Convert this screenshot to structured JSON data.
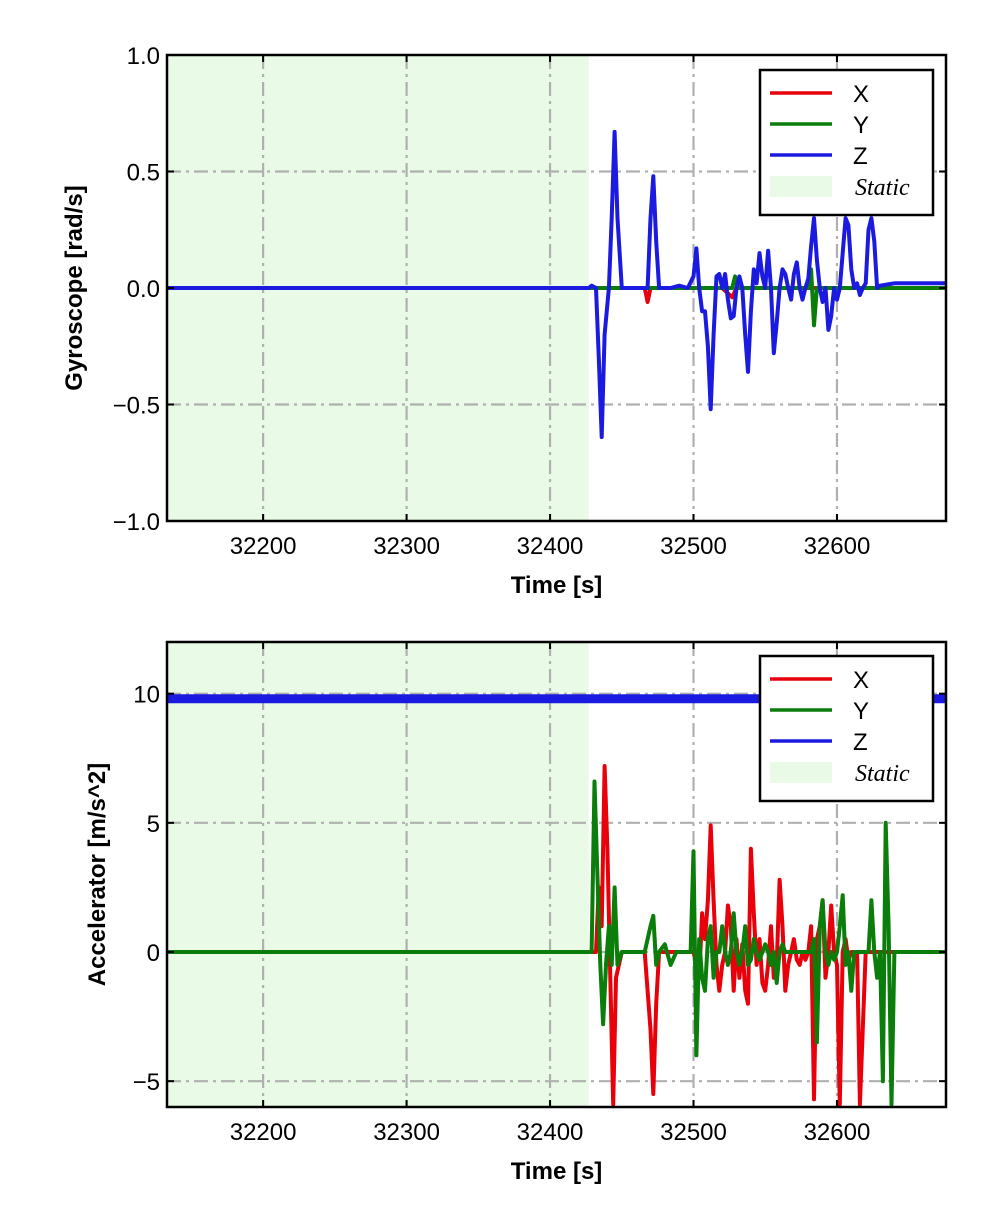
{
  "colors": {
    "X": "#e8000b",
    "Y": "#0a7d0a",
    "Z": "#1a1ae0",
    "static_fill": "#e9fbe6",
    "grid": "#b0b0b0"
  },
  "chart_data": [
    {
      "type": "line",
      "xlabel": "Time [s]",
      "ylabel": "Gyroscope [rad/s]",
      "xlim": [
        32133,
        32676
      ],
      "ylim": [
        -1.0,
        1.0
      ],
      "xticks": [
        32200,
        32300,
        32400,
        32500,
        32600
      ],
      "xtick_labels": [
        "32200",
        "32300",
        "32400",
        "32500",
        "32600"
      ],
      "yticks": [
        -1.0,
        -0.5,
        0.0,
        0.5,
        1.0
      ],
      "ytick_labels": [
        "−1.0",
        "−0.5",
        "0.0",
        "0.5",
        "1.0"
      ],
      "grid": true,
      "legend_position": "top-right",
      "static_region": [
        32133,
        32427
      ],
      "legend": [
        "X",
        "Y",
        "Z",
        "Static"
      ],
      "series": [
        {
          "name": "X",
          "color_key": "X",
          "x": [
            32133,
            32427,
            32466,
            32468,
            32470,
            32500,
            32520,
            32527,
            32530,
            32545,
            32560,
            32580,
            32600,
            32620,
            32676
          ],
          "y": [
            0.0,
            0.0,
            0.0,
            -0.06,
            0.0,
            0.0,
            0.0,
            -0.04,
            0.0,
            0.0,
            0.0,
            0.0,
            0.0,
            0.0,
            0.0
          ]
        },
        {
          "name": "Y",
          "color_key": "Y",
          "x": [
            32133,
            32427,
            32500,
            32527,
            32529,
            32531,
            32580,
            32582,
            32584,
            32586,
            32620,
            32676
          ],
          "y": [
            0.0,
            0.0,
            0.0,
            0.0,
            0.05,
            0.0,
            0.0,
            0.08,
            -0.16,
            0.0,
            0.0,
            0.0
          ]
        },
        {
          "name": "Z",
          "color_key": "Z",
          "x": [
            32133,
            32427,
            32429,
            32432,
            32434,
            32436,
            32438,
            32441,
            32443,
            32445,
            32447,
            32450,
            32468,
            32470,
            32472,
            32474,
            32476,
            32478,
            32484,
            32490,
            32496,
            32500,
            32502,
            32504,
            32506,
            32508,
            32510,
            32512,
            32514,
            32516,
            32518,
            32520,
            32522,
            32524,
            32526,
            32528,
            32530,
            32532,
            32534,
            32536,
            32538,
            32540,
            32542,
            32544,
            32546,
            32548,
            32550,
            32552,
            32554,
            32556,
            32558,
            32560,
            32562,
            32564,
            32566,
            32568,
            32570,
            32572,
            32574,
            32576,
            32578,
            32580,
            32582,
            32584,
            32586,
            32588,
            32590,
            32592,
            32594,
            32596,
            32598,
            32600,
            32602,
            32604,
            32606,
            32608,
            32610,
            32612,
            32614,
            32616,
            32618,
            32620,
            32622,
            32624,
            32626,
            32628,
            32630,
            32640,
            32660,
            32676
          ],
          "y": [
            0.0,
            0.0,
            0.01,
            0.0,
            -0.3,
            -0.64,
            -0.2,
            0.0,
            0.3,
            0.67,
            0.3,
            0.0,
            0.0,
            0.3,
            0.48,
            0.2,
            0.0,
            0.0,
            0.0,
            0.01,
            0.0,
            0.05,
            0.17,
            0.0,
            -0.1,
            -0.1,
            -0.25,
            -0.52,
            -0.2,
            0.05,
            0.06,
            0.0,
            0.06,
            -0.05,
            -0.13,
            -0.12,
            0.0,
            0.05,
            0.0,
            -0.2,
            -0.36,
            -0.1,
            0.08,
            0.02,
            0.15,
            0.05,
            0.0,
            0.16,
            0.0,
            -0.28,
            -0.15,
            0.0,
            0.08,
            0.06,
            0.0,
            -0.05,
            0.06,
            0.11,
            0.0,
            -0.05,
            0.0,
            0.04,
            0.18,
            0.3,
            0.12,
            0.0,
            -0.06,
            0.0,
            -0.18,
            -0.12,
            0.0,
            -0.05,
            0.0,
            0.15,
            0.3,
            0.27,
            0.08,
            0.0,
            0.02,
            -0.03,
            0.0,
            0.02,
            0.25,
            0.3,
            0.2,
            0.0,
            0.01,
            0.02,
            0.02,
            0.02
          ]
        }
      ]
    },
    {
      "type": "line",
      "xlabel": "Time [s]",
      "ylabel": "Accelerator [m/s^2]",
      "xlim": [
        32133,
        32676
      ],
      "ylim": [
        -6.0,
        12.0
      ],
      "xticks": [
        32200,
        32300,
        32400,
        32500,
        32600
      ],
      "xtick_labels": [
        "32200",
        "32300",
        "32400",
        "32500",
        "32600"
      ],
      "yticks": [
        -5,
        0,
        5,
        10
      ],
      "ytick_labels": [
        "−5",
        "0",
        "5",
        "10"
      ],
      "grid": true,
      "legend_position": "top-right",
      "static_region": [
        32133,
        32427
      ],
      "legend": [
        "X",
        "Y",
        "Z",
        "Static"
      ],
      "series": [
        {
          "name": "X",
          "color_key": "X",
          "x": [
            32133,
            32427,
            32432,
            32434,
            32436,
            32438,
            32440,
            32442,
            32444,
            32446,
            32450,
            32460,
            32466,
            32470,
            32472,
            32474,
            32476,
            32480,
            32490,
            32500,
            32502,
            32504,
            32506,
            32508,
            32510,
            32512,
            32514,
            32516,
            32518,
            32520,
            32522,
            32524,
            32526,
            32528,
            32530,
            32532,
            32534,
            32536,
            32538,
            32540,
            32542,
            32544,
            32546,
            32548,
            32550,
            32552,
            32554,
            32556,
            32558,
            32560,
            32562,
            32564,
            32566,
            32568,
            32570,
            32572,
            32574,
            32576,
            32578,
            32580,
            32582,
            32584,
            32586,
            32588,
            32590,
            32592,
            32594,
            32596,
            32598,
            32600,
            32602,
            32604,
            32606,
            32608,
            32610,
            32612,
            32614,
            32616,
            32620,
            32630,
            32640,
            32660,
            32676
          ],
          "y": [
            0.0,
            0.0,
            0.0,
            2.5,
            1.0,
            7.2,
            4.0,
            -1.0,
            -5.9,
            -1.0,
            0.0,
            0.0,
            0.0,
            -3.0,
            -5.5,
            -2.0,
            0.0,
            0.0,
            0.0,
            0.0,
            -0.5,
            -1.0,
            1.5,
            0.5,
            2.0,
            4.9,
            2.0,
            -0.5,
            -1.5,
            -0.5,
            0.0,
            1.8,
            1.0,
            -1.5,
            0.5,
            -1.0,
            0.3,
            -1.5,
            -2.0,
            4.0,
            1.5,
            -0.5,
            0.5,
            -1.2,
            -1.5,
            -0.5,
            1.0,
            -1.0,
            -0.5,
            2.8,
            1.0,
            -1.5,
            -0.5,
            0.0,
            0.5,
            -0.3,
            -0.5,
            0.0,
            -0.3,
            0.0,
            1.0,
            -5.7,
            0.5,
            1.0,
            2.0,
            -1.0,
            0.0,
            1.8,
            0.0,
            -0.5,
            -5.9,
            0.0,
            0.5,
            -0.3,
            0.0,
            0.0,
            0.0,
            -5.9,
            0.0,
            0.0,
            0.0,
            0.0,
            0.0
          ]
        },
        {
          "name": "Y",
          "color_key": "Y",
          "x": [
            32133,
            32427,
            32429,
            32431,
            32433,
            32435,
            32437,
            32439,
            32441,
            32443,
            32445,
            32447,
            32450,
            32466,
            32470,
            32472,
            32474,
            32476,
            32480,
            32484,
            32488,
            32490,
            32496,
            32498,
            32500,
            32502,
            32504,
            32506,
            32508,
            32510,
            32512,
            32514,
            32516,
            32518,
            32520,
            32522,
            32524,
            32526,
            32528,
            32530,
            32532,
            32534,
            32536,
            32538,
            32540,
            32542,
            32544,
            32546,
            32548,
            32550,
            32552,
            32554,
            32556,
            32558,
            32560,
            32562,
            32564,
            32566,
            32568,
            32570,
            32580,
            32582,
            32584,
            32586,
            32588,
            32590,
            32592,
            32594,
            32596,
            32598,
            32600,
            32602,
            32604,
            32606,
            32608,
            32610,
            32612,
            32614,
            32616,
            32618,
            32620,
            32622,
            32624,
            32626,
            32628,
            32630,
            32632,
            32634,
            32636,
            32638,
            32640,
            32642,
            32644,
            32660,
            32676
          ],
          "y": [
            0.0,
            0.0,
            0.0,
            6.6,
            3.0,
            -0.5,
            -2.8,
            -0.5,
            1.0,
            -0.5,
            2.5,
            -0.5,
            0.0,
            0.0,
            1.0,
            1.4,
            -0.5,
            0.0,
            0.3,
            -0.5,
            0.0,
            0.0,
            0.0,
            0.0,
            3.9,
            -4.0,
            0.5,
            -1.0,
            -1.5,
            0.5,
            1.0,
            -1.0,
            0.0,
            0.0,
            1.0,
            0.0,
            -0.5,
            0.0,
            1.5,
            0.0,
            -0.5,
            0.0,
            1.0,
            -0.5,
            -0.3,
            0.5,
            0.0,
            -0.3,
            0.0,
            0.3,
            0.0,
            -0.5,
            0.0,
            -1.2,
            0.0,
            0.3,
            0.0,
            0.0,
            0.0,
            0.0,
            0.0,
            0.0,
            0.5,
            -3.5,
            1.0,
            2.0,
            0.0,
            -0.5,
            0.0,
            -0.3,
            0.0,
            1.0,
            2.2,
            -0.5,
            0.0,
            -1.5,
            0.0,
            0.0,
            0.0,
            0.0,
            0.0,
            0.0,
            2.0,
            0.0,
            -1.0,
            0.0,
            -5.0,
            5.0,
            1.0,
            -5.9,
            0.0,
            0.0,
            0.0,
            0.0,
            0.0
          ]
        },
        {
          "name": "Z",
          "color_key": "Z",
          "x": [
            32133,
            32676
          ],
          "y": [
            9.8,
            9.8
          ]
        }
      ]
    }
  ]
}
